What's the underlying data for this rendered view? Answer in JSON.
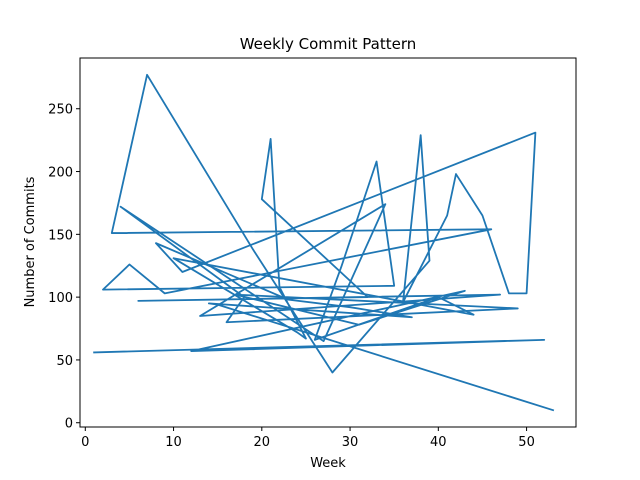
{
  "chart_data": {
    "type": "line",
    "title": "Weekly Commit Pattern",
    "xlabel": "Week",
    "ylabel": "Number of Commits",
    "xlim": [
      -0.6,
      55.6
    ],
    "ylim": [
      -3.4,
      290.4
    ],
    "xticks": [
      0,
      10,
      20,
      30,
      40,
      50
    ],
    "yticks": [
      0,
      50,
      100,
      150,
      200,
      250
    ],
    "grid": false,
    "legend": "none",
    "series": [
      {
        "color": "#1f77b4",
        "points": [
          [
            1,
            56
          ],
          [
            52,
            66
          ],
          [
            12,
            57
          ],
          [
            43,
            105
          ],
          [
            31,
            78
          ],
          [
            17,
            102
          ],
          [
            49,
            91
          ],
          [
            16,
            80
          ],
          [
            18,
            100
          ],
          [
            4,
            172
          ],
          [
            27,
            65
          ],
          [
            34,
            174
          ],
          [
            13,
            85
          ],
          [
            47,
            102
          ],
          [
            6,
            97
          ],
          [
            32,
            100
          ],
          [
            20,
            178
          ],
          [
            21,
            226
          ],
          [
            22,
            108
          ],
          [
            25,
            67
          ],
          [
            24,
            72
          ],
          [
            10,
            131
          ],
          [
            44,
            86
          ],
          [
            40,
            100
          ],
          [
            26,
            66
          ],
          [
            29,
            124
          ],
          [
            33,
            208
          ],
          [
            35,
            109
          ],
          [
            2,
            106
          ],
          [
            5,
            126
          ],
          [
            9,
            103
          ],
          [
            46,
            154
          ],
          [
            3,
            151
          ],
          [
            7,
            277
          ],
          [
            19,
            138
          ],
          [
            28,
            40
          ],
          [
            39,
            129
          ],
          [
            38,
            229
          ],
          [
            36,
            96
          ],
          [
            41,
            165
          ],
          [
            42,
            198
          ],
          [
            45,
            165
          ],
          [
            48,
            103
          ],
          [
            50,
            103
          ],
          [
            51,
            231
          ],
          [
            11,
            120
          ],
          [
            8,
            143
          ],
          [
            23,
            98
          ],
          [
            30,
            92
          ],
          [
            37,
            84
          ],
          [
            14,
            95
          ],
          [
            15,
            94
          ],
          [
            53,
            10
          ]
        ]
      }
    ]
  }
}
